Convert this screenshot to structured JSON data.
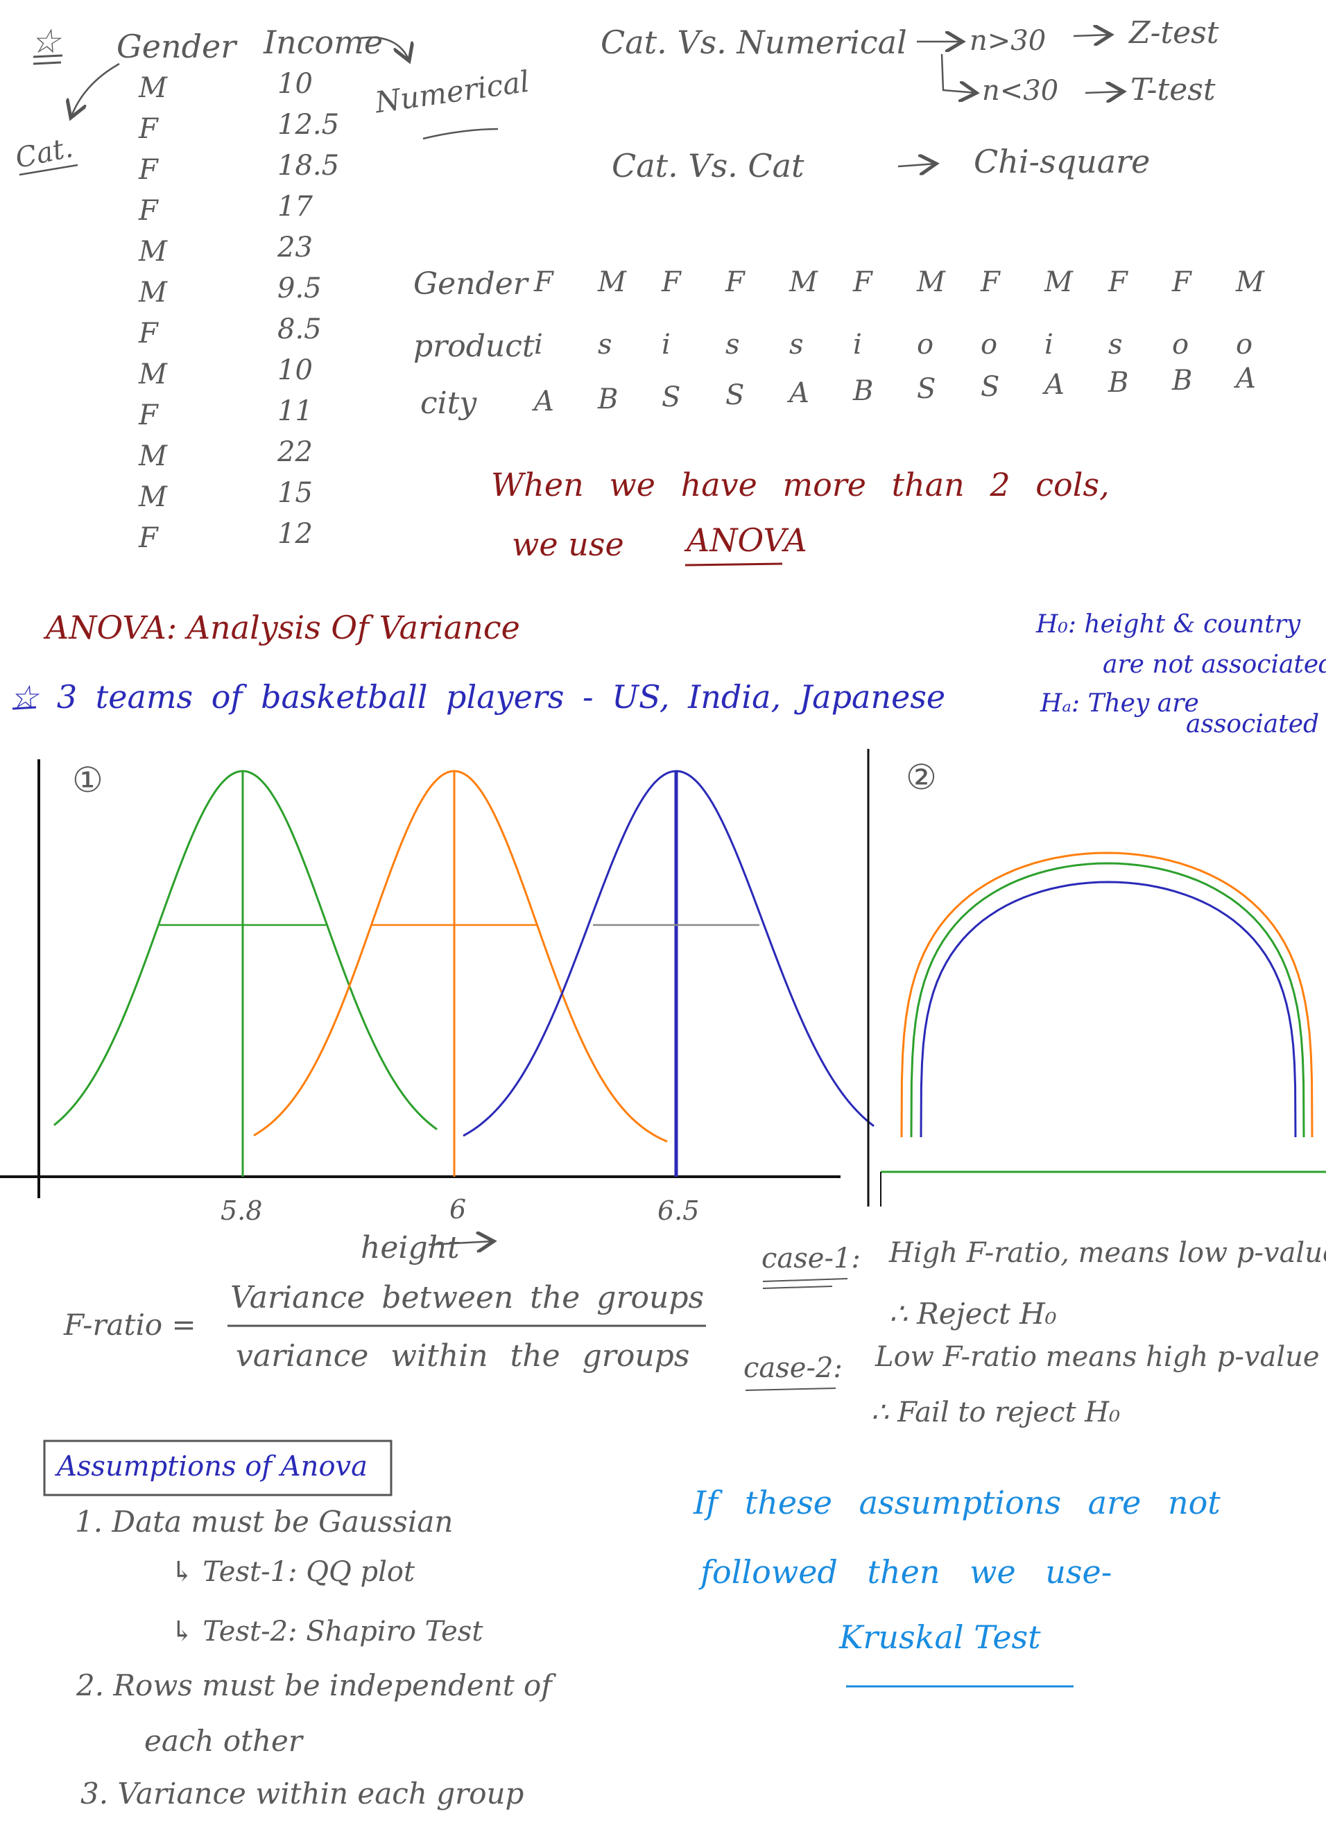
{
  "colors": {
    "green": "#2ca02c",
    "orange": "#ff7f0e",
    "blue": "#2a2ab8",
    "gray": "#888888",
    "dark": "#555555",
    "maroon": "#8b1a1a",
    "cyan": "#1a8ce0",
    "black": "#111111"
  },
  "table": {
    "star": "☆",
    "gender_header": "Gender",
    "income_header": "Income",
    "numerical_label": "Numerical",
    "cat_label": "Cat.",
    "genders": [
      "M",
      "F",
      "F",
      "F",
      "M",
      "M",
      "F",
      "M",
      "F",
      "M",
      "M",
      "F"
    ],
    "incomes": [
      "10",
      "12.5",
      "18.5",
      "17",
      "23",
      "9.5",
      "8.5",
      "10",
      "11",
      "22",
      "15",
      "12"
    ]
  },
  "tests": {
    "cat_num": "Cat. Vs. Numerical",
    "n_gt": "n>30",
    "z_test": "Z-test",
    "n_lt": "n<30",
    "t_test": "T-test",
    "cat_cat": "Cat. Vs. Cat",
    "chi": "Chi-square"
  },
  "grid": {
    "rows": [
      {
        "label": "Gender",
        "cells": [
          "F",
          "M",
          "F",
          "F",
          "M",
          "F",
          "M",
          "F",
          "M",
          "F",
          "F",
          "M"
        ]
      },
      {
        "label": "product",
        "cells": [
          "i",
          "s",
          "i",
          "s",
          "s",
          "i",
          "o",
          "o",
          "i",
          "s",
          "o",
          "o"
        ]
      },
      {
        "label": "city",
        "cells": [
          "A",
          "B",
          "S",
          "S",
          "A",
          "B",
          "S",
          "S",
          "A",
          "B",
          "B",
          "A"
        ]
      }
    ]
  },
  "anova_note": {
    "line1": "When we have more than 2 cols,",
    "line2_prefix": "we use",
    "line2_word": "ANOVA"
  },
  "anova_title": "ANOVA: Analysis Of Variance",
  "teams_line": "☆ 3 teams of basketball players - US, India, Japanese",
  "hypotheses": {
    "h0_line1": "H₀: height & country",
    "h0_line2": "are not associated",
    "ha_line1": "Hₐ: They are",
    "ha_line2": "associated"
  },
  "plot1": {
    "marker": "①",
    "ticks": [
      "5.8",
      "6",
      "6.5"
    ],
    "xlabel": "height"
  },
  "plot2": {
    "marker": "②"
  },
  "formula": {
    "lhs": "F-ratio =",
    "numerator": "Variance between the groups",
    "denominator": "variance within the groups"
  },
  "cases": {
    "case1_label": "case-1:",
    "case1_text": "High F-ratio, means low p-value",
    "case1_result": "∴ Reject H₀",
    "case2_label": "case-2:",
    "case2_text": "Low F-ratio means high p-value",
    "case2_result": "∴ Fail to reject H₀"
  },
  "assumptions": {
    "title": "Assumptions of Anova",
    "item1": "1. Data must be Gaussian",
    "test1": "↳ Test-1: QQ plot",
    "test2": "↳ Test-2: Shapiro Test",
    "item2_line1": "2. Rows must be independent of",
    "item2_line2": "each other",
    "item3": "3. Variance within each group"
  },
  "kruskal": {
    "line1": "If these assumptions are not",
    "line2": "followed then we use-",
    "word": "Kruskal Test"
  }
}
